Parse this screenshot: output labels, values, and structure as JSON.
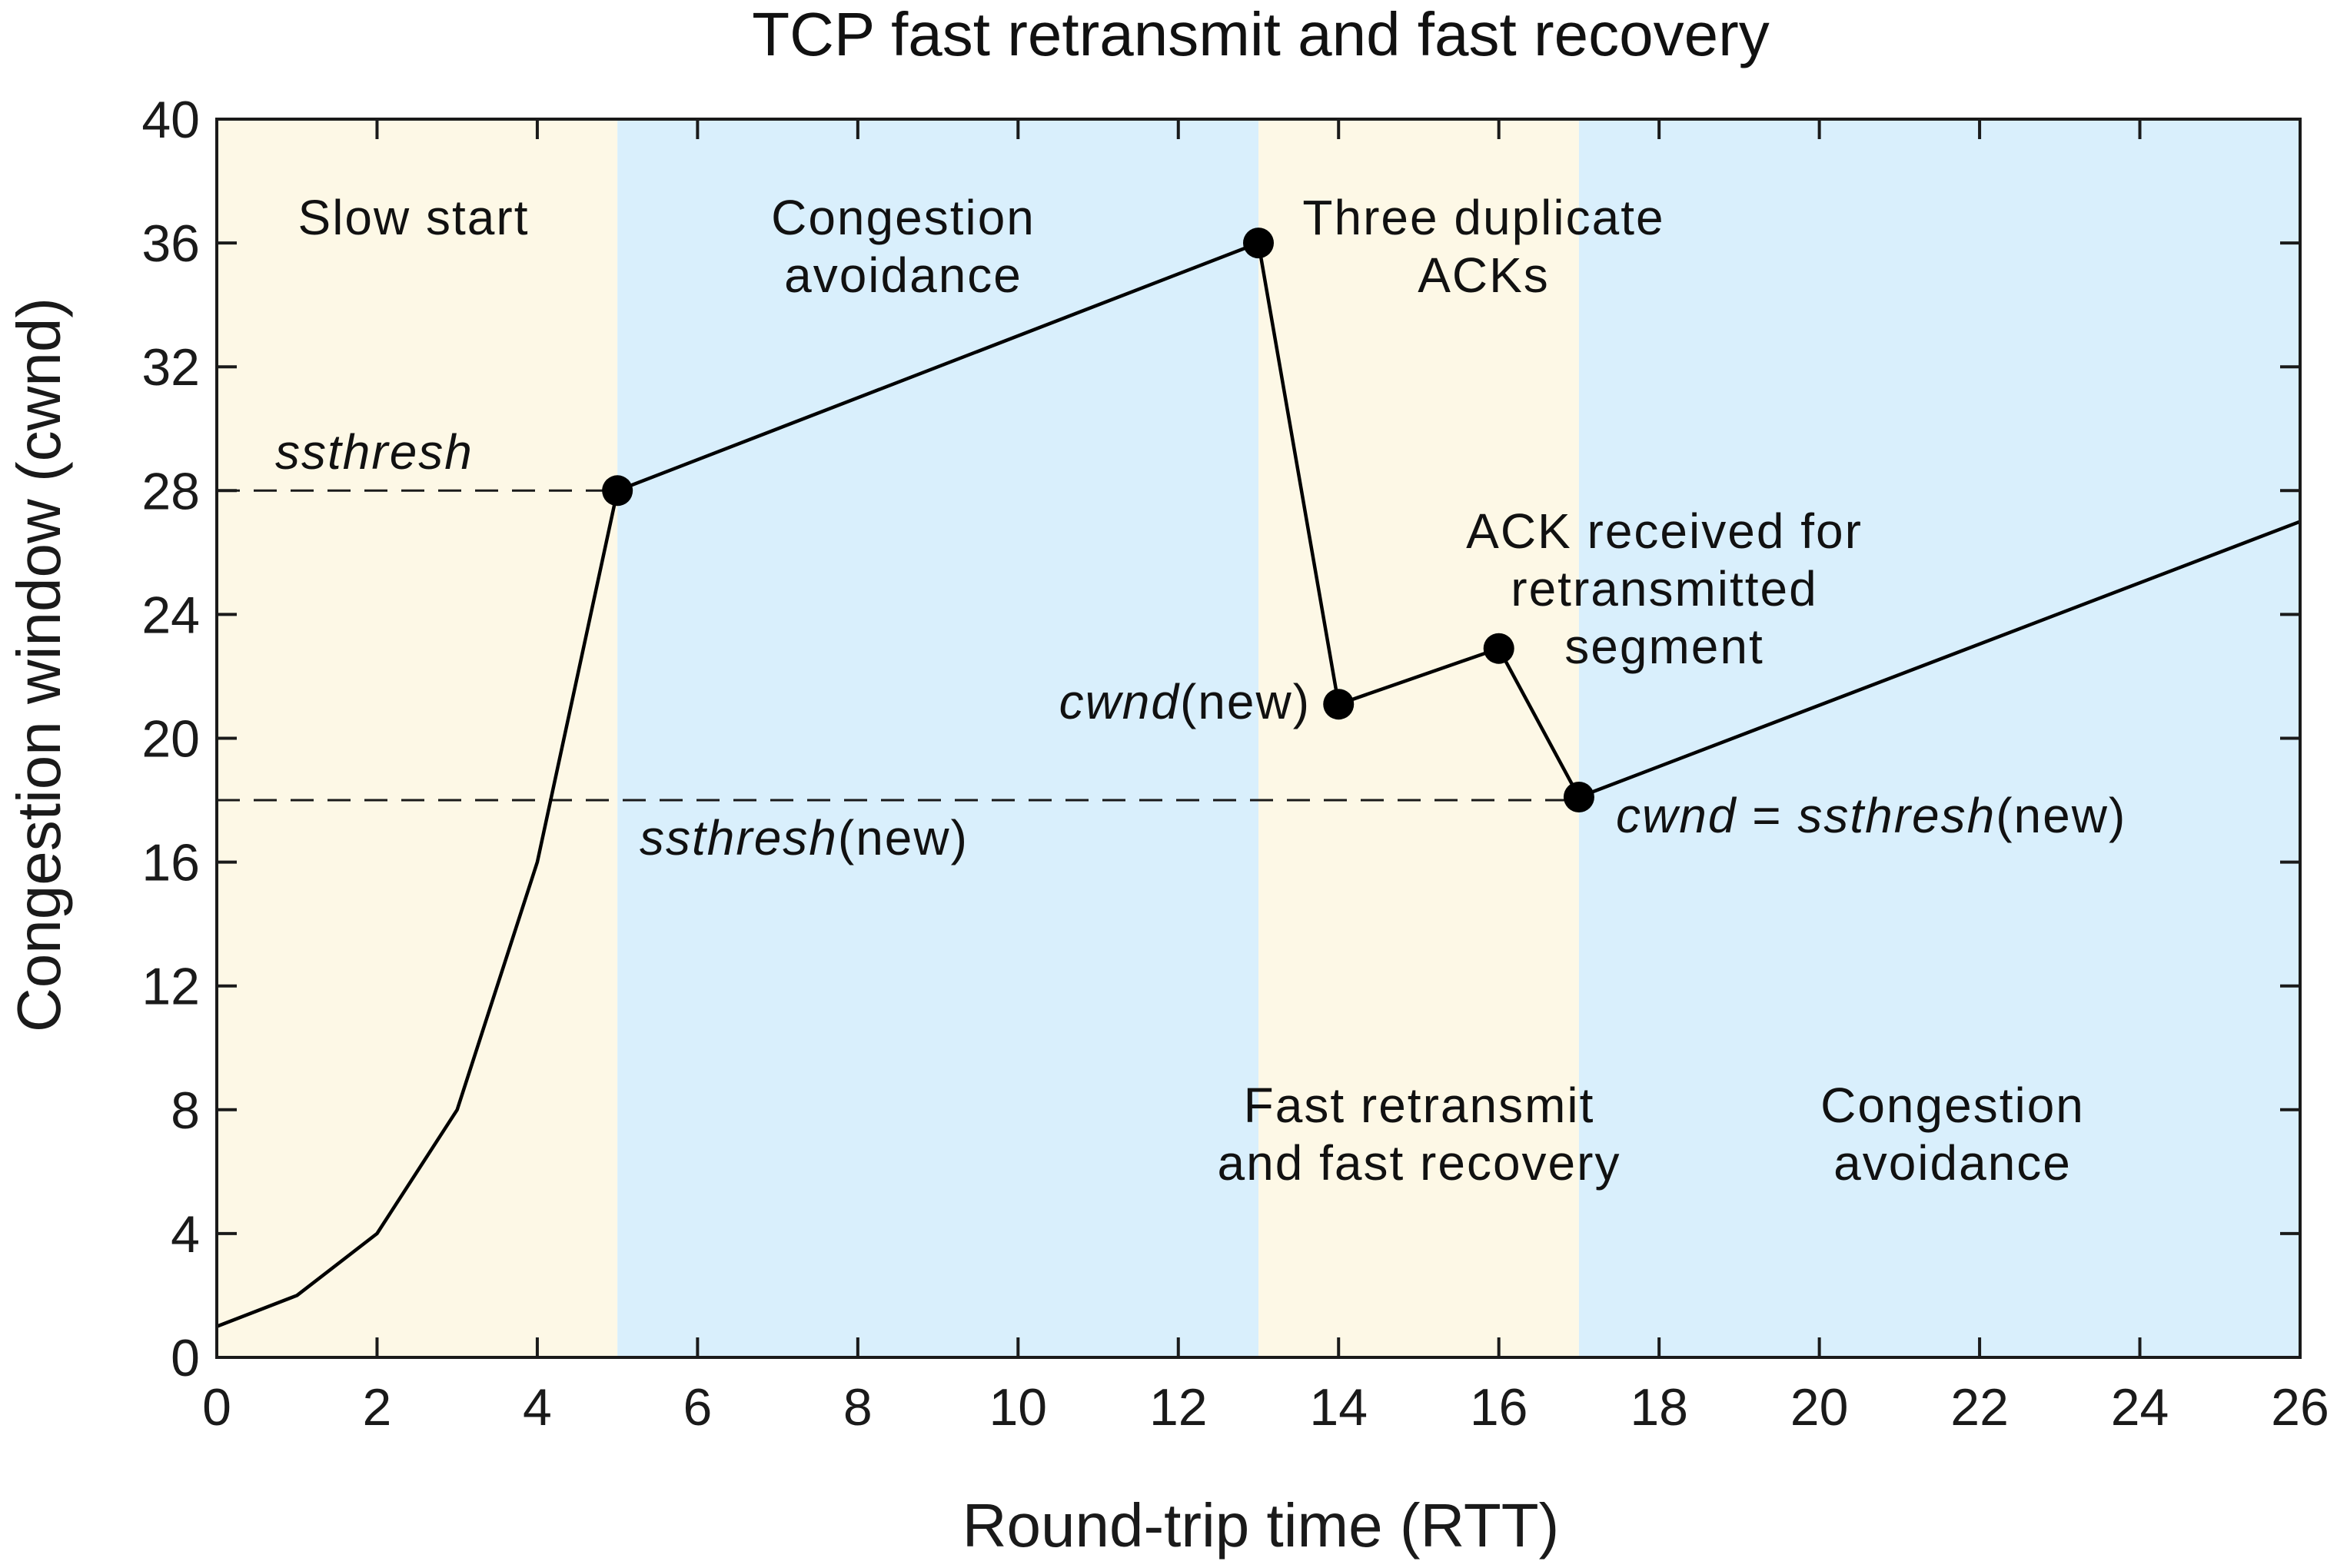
{
  "chart_data": {
    "type": "line",
    "title": "TCP fast retransmit and fast recovery",
    "xlabel": "Round-trip time (RTT)",
    "ylabel": "Congestion window (cwnd)",
    "xlim": [
      0,
      26
    ],
    "ylim": [
      0,
      40
    ],
    "xticks": [
      0,
      2,
      4,
      6,
      8,
      10,
      12,
      14,
      16,
      18,
      20,
      22,
      24,
      26
    ],
    "yticks": [
      0,
      4,
      8,
      12,
      16,
      20,
      24,
      28,
      32,
      36,
      40
    ],
    "grid": false,
    "legend": "none",
    "series": [
      {
        "color": "#000000",
        "x": [
          0,
          1,
          2,
          3,
          4,
          5,
          13,
          14,
          16,
          17,
          26
        ],
        "y": [
          1,
          2,
          4,
          8,
          16,
          28,
          36,
          21.1,
          22.9,
          18.1,
          27
        ]
      }
    ],
    "markers": [
      {
        "x": 5,
        "y": 28
      },
      {
        "x": 13,
        "y": 36
      },
      {
        "x": 14,
        "y": 21.1
      },
      {
        "x": 16,
        "y": 22.9
      },
      {
        "x": 17,
        "y": 18.1
      }
    ],
    "regions": [
      {
        "x0": 0,
        "x1": 5,
        "color": "#fdf8e6"
      },
      {
        "x0": 5,
        "x1": 13,
        "color": "#d9effc"
      },
      {
        "x0": 13,
        "x1": 17,
        "color": "#fdf8e6"
      },
      {
        "x0": 17,
        "x1": 26,
        "color": "#d9effc"
      }
    ],
    "reference_lines": [
      {
        "y": 28,
        "x0": 0,
        "x1": 5,
        "style": "dashed"
      },
      {
        "y": 18,
        "x0": 0,
        "x1": 17,
        "style": "dashed"
      }
    ],
    "annotations": {
      "slow_start": "Slow start",
      "congestion_avoidance_1_line1": "Congestion",
      "congestion_avoidance_1_line2": "avoidance",
      "three_dup_line1": "Three duplicate",
      "three_dup_line2": "ACKs",
      "ssthresh": "ssthresh",
      "ack_received_line1": "ACK received for",
      "ack_received_line2": "retransmitted",
      "ack_received_line3": "segment",
      "cwnd_new_italic": "cwnd",
      "cwnd_new_rest": "(new)",
      "ssthresh_new_italic": "ssthresh",
      "ssthresh_new_rest": "(new)",
      "cwnd_eq_italic1": "cwnd",
      "cwnd_eq_mid": " = ",
      "cwnd_eq_italic2": "ssthresh",
      "cwnd_eq_rest": "(new)",
      "fast_retransmit_line1": "Fast retransmit",
      "fast_retransmit_line2": "and fast recovery",
      "congestion_avoidance_2_line1": "Congestion",
      "congestion_avoidance_2_line2": "avoidance"
    }
  }
}
